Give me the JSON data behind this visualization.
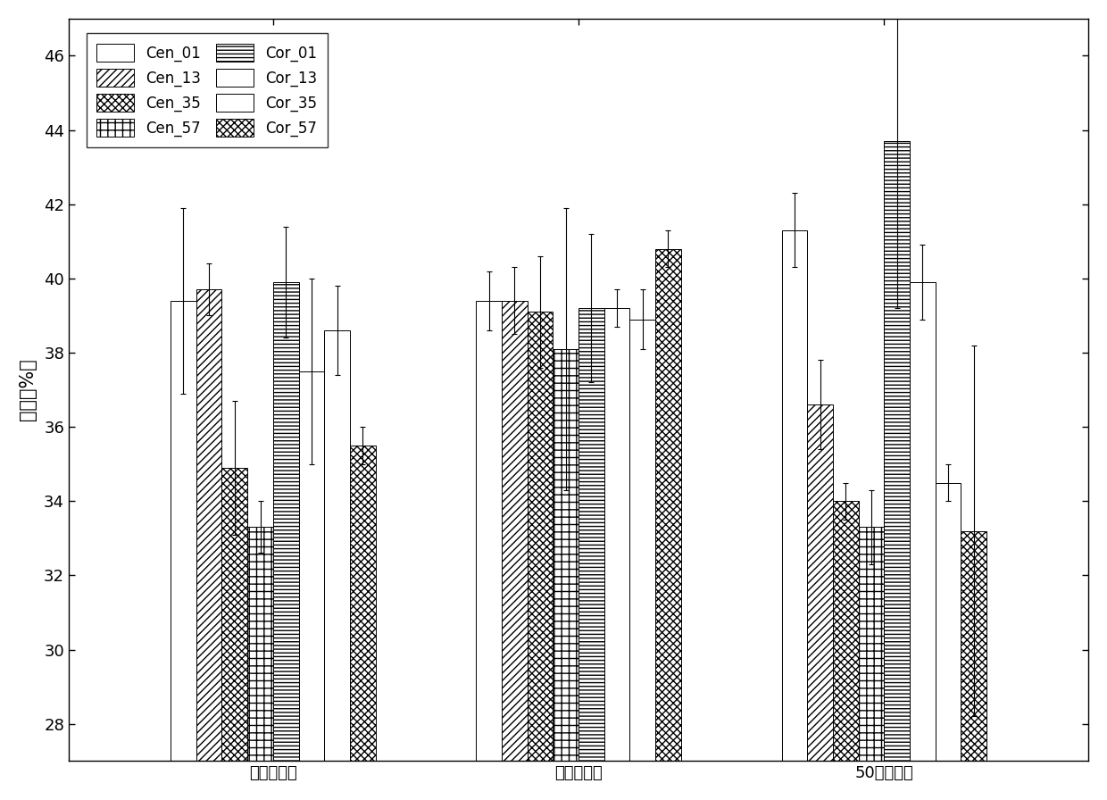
{
  "groups": [
    "待改良窖泥",
    "改良后窖泥",
    "50年老窖泥"
  ],
  "series": [
    "Cen_01",
    "Cen_13",
    "Cen_35",
    "Cen_57",
    "Cor_01",
    "Cor_13",
    "Cor_35",
    "Cor_57"
  ],
  "values": [
    [
      39.4,
      39.7,
      34.9,
      33.3,
      39.9,
      37.5,
      38.6,
      35.5
    ],
    [
      39.4,
      39.4,
      39.1,
      38.1,
      39.2,
      39.2,
      38.9,
      40.8
    ],
    [
      41.3,
      36.6,
      34.0,
      33.3,
      43.7,
      39.9,
      34.5,
      33.2
    ]
  ],
  "errors": [
    [
      2.5,
      0.7,
      1.8,
      0.7,
      1.5,
      2.5,
      1.2,
      0.5
    ],
    [
      0.8,
      0.9,
      1.5,
      3.8,
      2.0,
      0.5,
      0.8,
      0.5
    ],
    [
      1.0,
      1.2,
      0.5,
      1.0,
      4.5,
      1.0,
      0.5,
      5.0
    ]
  ],
  "ylabel": "水分（%）",
  "ylim": [
    27,
    47
  ],
  "yticks": [
    28,
    30,
    32,
    34,
    36,
    38,
    40,
    42,
    44,
    46
  ],
  "bar_width": 0.088,
  "group_centers": [
    0.5,
    1.55,
    2.6
  ],
  "hatch_patterns": [
    "",
    "////",
    "\\\\\\\\",
    "xxxx",
    "----",
    "",
    "MMMM",
    "\\\\\\\\////"
  ],
  "face_colors": [
    "white",
    "white",
    "white",
    "white",
    "white",
    "white",
    "white",
    "white"
  ],
  "legend_labels": [
    "Cen_01",
    "Cen_13",
    "Cen_35",
    "Cen_57",
    "Cor_01",
    "Cor_13",
    "Cor_35",
    "Cor_57"
  ]
}
